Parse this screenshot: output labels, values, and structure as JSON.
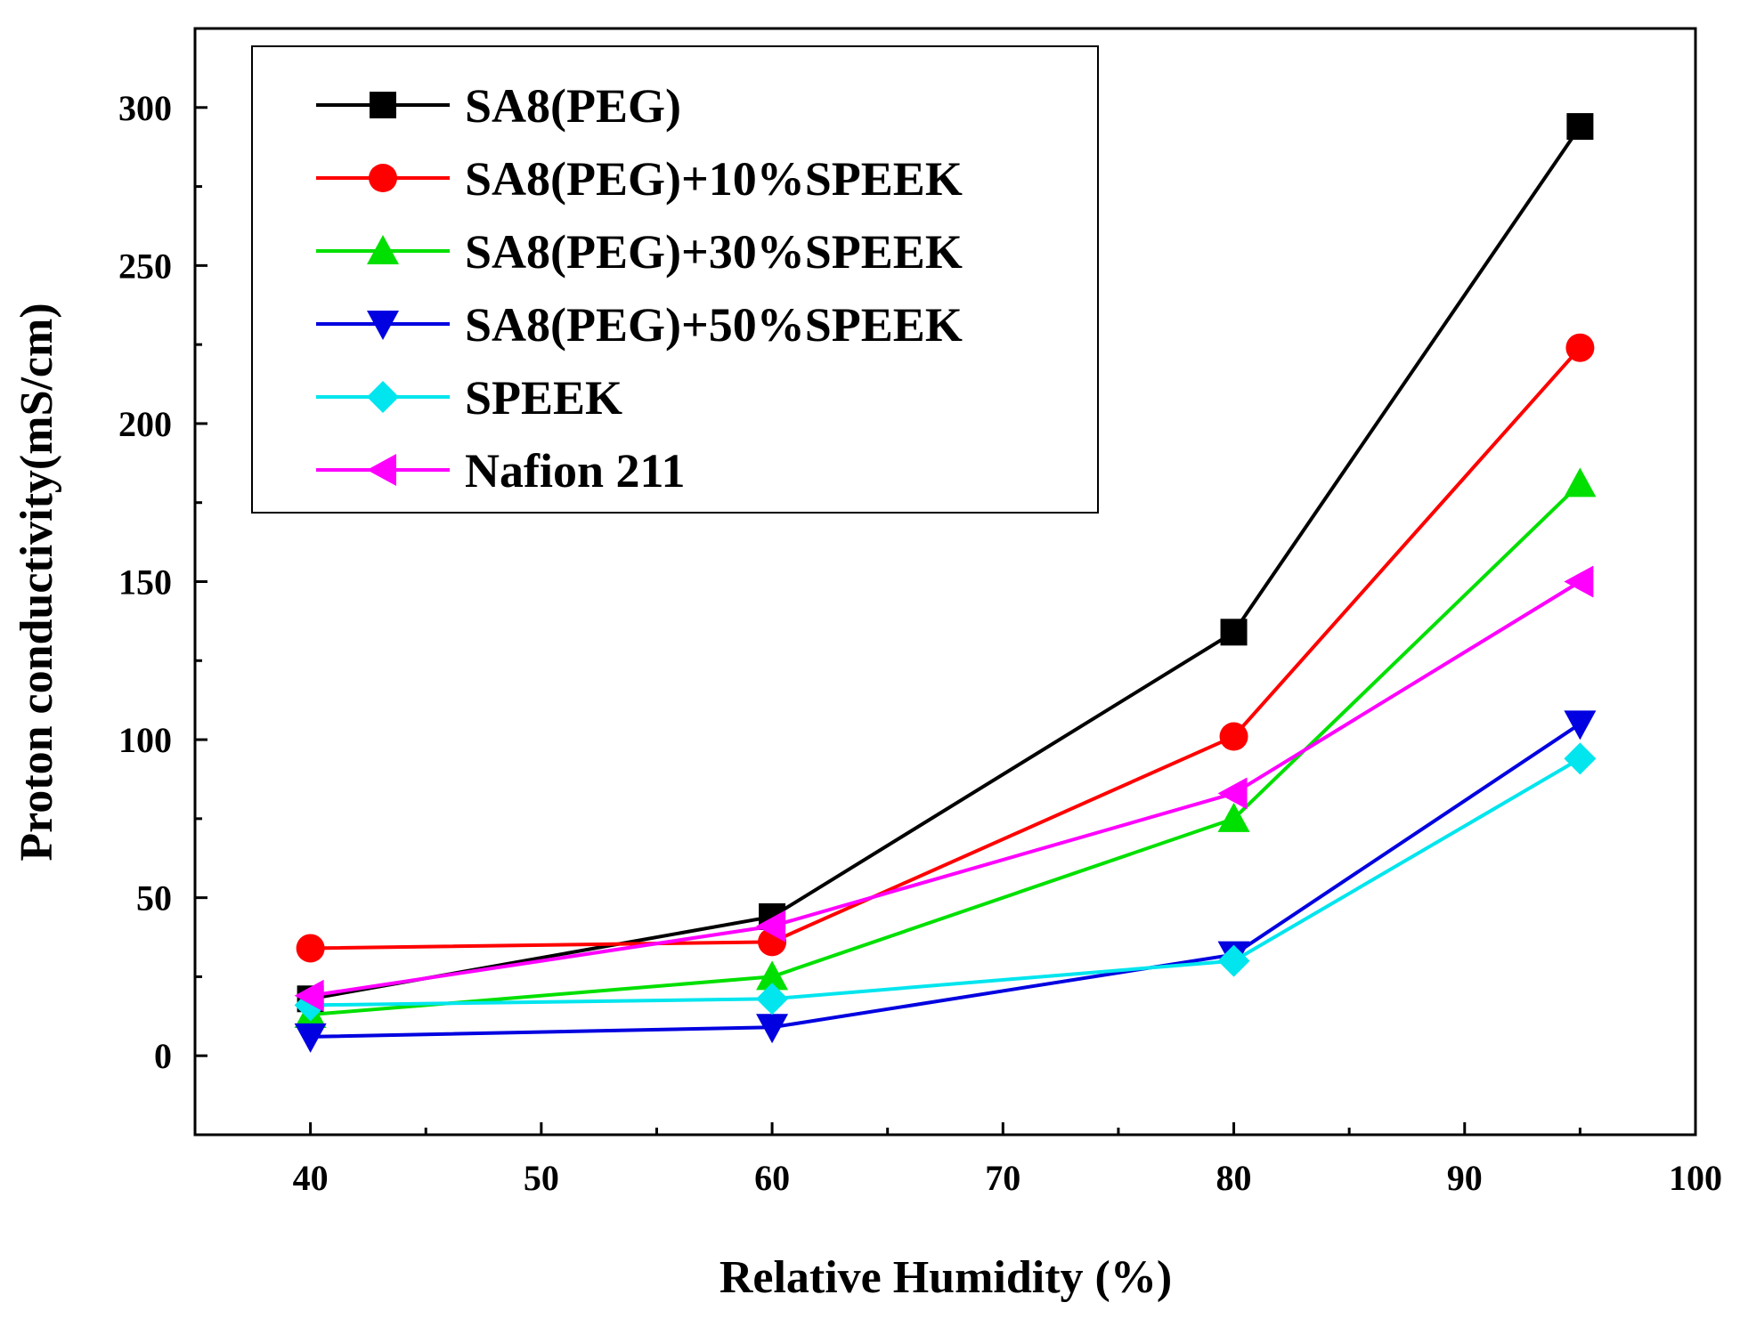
{
  "chart_data": {
    "type": "line",
    "title": "",
    "xlabel": "Relative Humidity (%)",
    "ylabel": "Proton conductivity(mS/cm)",
    "xlim": [
      35,
      100
    ],
    "ylim": [
      -25,
      325
    ],
    "xticks": [
      40,
      50,
      60,
      70,
      80,
      90,
      100
    ],
    "yticks": [
      0,
      50,
      100,
      150,
      200,
      250,
      300
    ],
    "x": [
      40,
      60,
      80,
      95
    ],
    "grid": false,
    "legend_position": "top-left",
    "series": [
      {
        "name": "SA8(PEG)",
        "color": "#000000",
        "marker": "square",
        "values": [
          18,
          44,
          134,
          294
        ]
      },
      {
        "name": "SA8(PEG)+10%SPEEK",
        "color": "#ff0000",
        "marker": "circle",
        "values": [
          34,
          36,
          101,
          224
        ]
      },
      {
        "name": "SA8(PEG)+30%SPEEK",
        "color": "#00e000",
        "marker": "triangle-up",
        "values": [
          13,
          25,
          75,
          181
        ]
      },
      {
        "name": "SA8(PEG)+50%SPEEK",
        "color": "#0000e0",
        "marker": "triangle-down",
        "values": [
          6,
          9,
          32,
          105
        ]
      },
      {
        "name": "SPEEK",
        "color": "#00e5ee",
        "marker": "diamond",
        "values": [
          16,
          18,
          30,
          94
        ]
      },
      {
        "name": "Nafion 211",
        "color": "#ff00ff",
        "marker": "triangle-left",
        "values": [
          19,
          41,
          83,
          150
        ]
      }
    ]
  }
}
